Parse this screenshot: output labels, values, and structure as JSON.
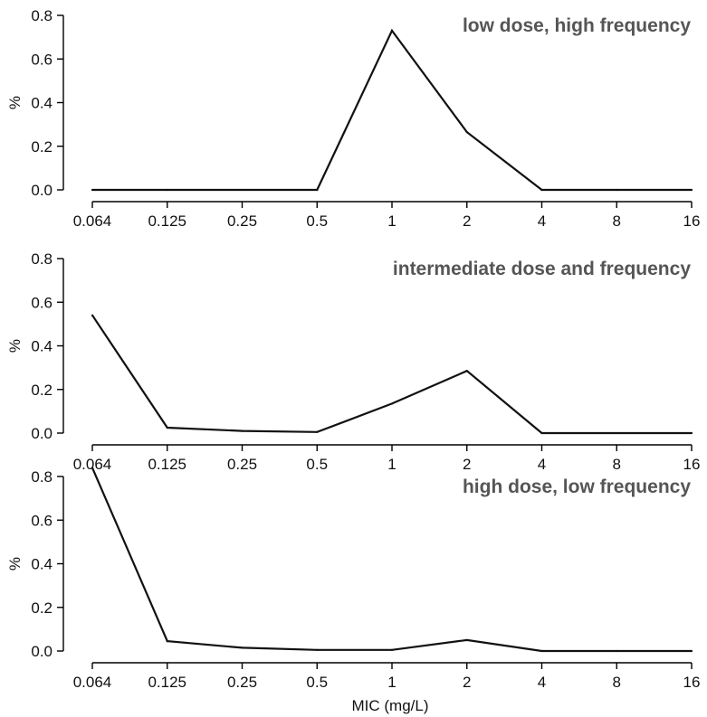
{
  "chart_data": [
    {
      "type": "line",
      "title": "low dose, high frequency",
      "xlabel": "",
      "ylabel": "%",
      "ylim": [
        0,
        0.8
      ],
      "yticks": [
        "0.0",
        "0.2",
        "0.4",
        "0.6",
        "0.8"
      ],
      "categories": [
        "0.064",
        "0.125",
        "0.25",
        "0.5",
        "1",
        "2",
        "4",
        "8",
        "16"
      ],
      "values": [
        0,
        0,
        0,
        0,
        0.73,
        0.265,
        0,
        0,
        0
      ],
      "grid": false,
      "line_color": "#111111"
    },
    {
      "type": "line",
      "title": "intermediate dose and frequency",
      "xlabel": "",
      "ylabel": "%",
      "ylim": [
        0,
        0.8
      ],
      "yticks": [
        "0.0",
        "0.2",
        "0.4",
        "0.6",
        "0.8"
      ],
      "categories": [
        "0.064",
        "0.125",
        "0.25",
        "0.5",
        "1",
        "2",
        "4",
        "8",
        "16"
      ],
      "values": [
        0.54,
        0.025,
        0.01,
        0.005,
        0.135,
        0.285,
        0,
        0,
        0
      ],
      "grid": false,
      "line_color": "#111111"
    },
    {
      "type": "line",
      "title": "high dose, low frequency",
      "xlabel": "MIC (mg/L)",
      "ylabel": "%",
      "ylim": [
        0,
        0.8
      ],
      "yticks": [
        "0.0",
        "0.2",
        "0.4",
        "0.6",
        "0.8"
      ],
      "categories": [
        "0.064",
        "0.125",
        "0.25",
        "0.5",
        "1",
        "2",
        "4",
        "8",
        "16"
      ],
      "values": [
        0.84,
        0.045,
        0.015,
        0.005,
        0.005,
        0.05,
        0,
        0,
        0
      ],
      "grid": false,
      "line_color": "#111111"
    }
  ],
  "colors": {
    "title": "#555555",
    "line": "#111111",
    "axis": "#000000"
  }
}
